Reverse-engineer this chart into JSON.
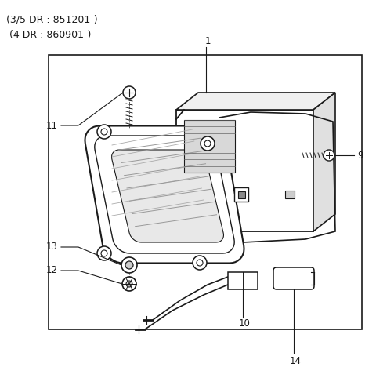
{
  "background_color": "#ffffff",
  "line_color": "#1a1a1a",
  "text_color": "#1a1a1a",
  "header_text_line1": "(3/5 DR : 851201-)",
  "header_text_line2": " (4 DR : 860901-)",
  "figsize": [
    4.8,
    4.82
  ],
  "dpi": 100
}
